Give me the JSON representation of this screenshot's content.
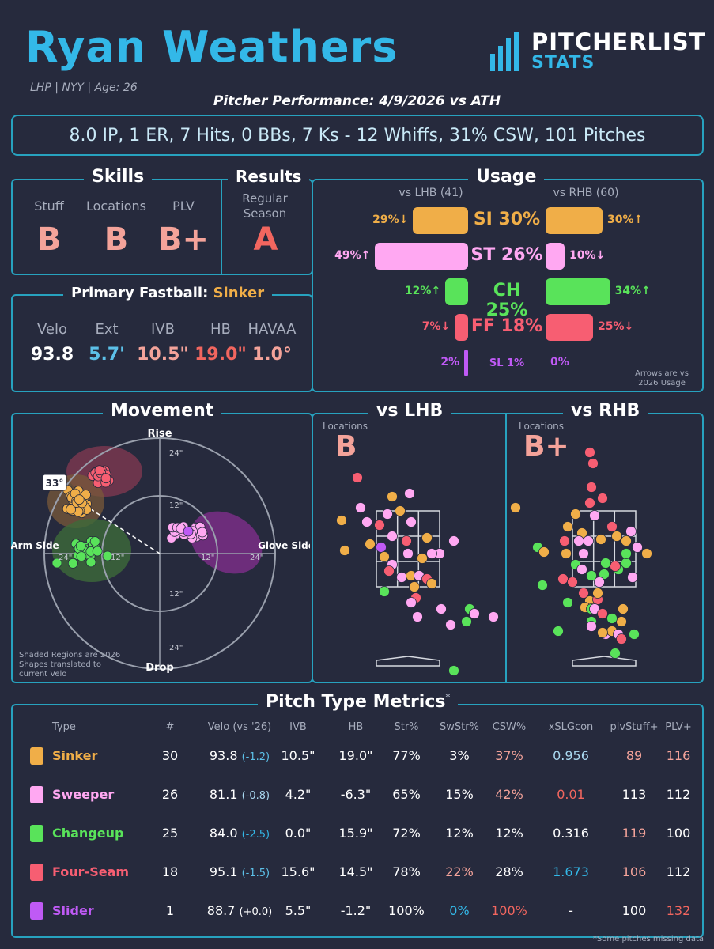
{
  "header": {
    "pitcher_name": "Ryan Weathers",
    "subtitle": "LHP | NYY | Age: 26",
    "performance_title": "Pitcher Performance: 4/9/2026 vs ATH",
    "stat_line": "8.0 IP, 1 ER, 7 Hits, 0 BBs, 7 Ks - 12 Whiffs, 31% CSW, 101 Pitches",
    "logo_main": "PITCHERLIST",
    "logo_sub": "STATS"
  },
  "skills": {
    "title": "Skills",
    "labels": [
      "Stuff",
      "Locations",
      "PLV"
    ],
    "grades": [
      "B",
      "B",
      "B+"
    ]
  },
  "results": {
    "title": "Results",
    "label": "Regular Season",
    "grade": "A"
  },
  "primary_fastball": {
    "title_prefix": "Primary Fastball:",
    "pitch": "Sinker",
    "labels": [
      "Velo",
      "Ext",
      "IVB",
      "HB",
      "HAVAA"
    ],
    "values": [
      "93.8",
      "5.7'",
      "10.5\"",
      "19.0\"",
      "1.0°"
    ],
    "value_colors": [
      "#ffffff",
      "#5cc0e8",
      "#f4a39a",
      "#f2665f",
      "#f4a39a"
    ]
  },
  "usage": {
    "title": "Usage",
    "lhb_label": "vs LHB (41)",
    "rhb_label": "vs RHB (60)",
    "note": "Arrows are vs 2026 Usage",
    "rows": [
      {
        "label": "SI 30%",
        "color": "#f0ae48",
        "lhb": 29,
        "lhb_text": "29%↓",
        "rhb": 30,
        "rhb_text": "30%↑"
      },
      {
        "label": "ST 26%",
        "color": "#ffa8f2",
        "lhb": 49,
        "lhb_text": "49%↑",
        "rhb": 10,
        "rhb_text": "10%↓"
      },
      {
        "label": "CH 25%",
        "color": "#59e35a",
        "lhb": 12,
        "lhb_text": "12%↑",
        "rhb": 34,
        "rhb_text": "34%↑"
      },
      {
        "label": "FF 18%",
        "color": "#f75e72",
        "lhb": 7,
        "lhb_text": "7%↓",
        "rhb": 25,
        "rhb_text": "25%↓"
      },
      {
        "label": "SL 1%",
        "color": "#bf5af5",
        "lhb": 2,
        "lhb_text": "2%",
        "rhb": 0,
        "rhb_text": "0%"
      }
    ]
  },
  "movement": {
    "title": "Movement",
    "top_label": "Rise",
    "bottom_label": "Drop",
    "left_label": "Arm Side",
    "right_label": "Glove Side",
    "ring_labels": [
      "24\"",
      "12\"",
      "12\"",
      "24\"",
      "24\"",
      "12\"",
      "12\"",
      "24\""
    ],
    "arm_angle": "33°",
    "note": "Shaded Regions are 2026 Shapes translated to current Velo"
  },
  "vs_lhb": {
    "title": "vs LHB",
    "loc_label": "Locations",
    "grade": "B"
  },
  "vs_rhb": {
    "title": "vs RHB",
    "loc_label": "Locations",
    "grade": "B+"
  },
  "metrics": {
    "title": "Pitch Type Metrics",
    "asterisk": "*",
    "footnote": "*Some pitches missing data",
    "headers": [
      "Type",
      "#",
      "Velo (vs '26)",
      "IVB",
      "HB",
      "Str%",
      "SwStr%",
      "CSW%",
      "xSLGcon",
      "plvStuff+",
      "PLV+"
    ],
    "rows": [
      {
        "type": "Sinker",
        "color": "#f0ae48",
        "n": "30",
        "velo": "93.8",
        "velo_diff": "(-1.2)",
        "ivb": "10.5\"",
        "hb": "19.0\"",
        "str": "77%",
        "swstr": "3%",
        "csw": "37%",
        "xslg": "0.956",
        "stuff": "89",
        "plv": "116",
        "colors": {
          "swstr": "#ffffff",
          "csw": "#f4a39a",
          "xslg": "#a9d8f0",
          "stuff": "#f4a39a",
          "plv": "#f4a39a",
          "velo_diff": "#5cc0e8"
        }
      },
      {
        "type": "Sweeper",
        "color": "#ffa8f2",
        "n": "26",
        "velo": "81.1",
        "velo_diff": "(-0.8)",
        "ivb": "4.2\"",
        "hb": "-6.3\"",
        "str": "65%",
        "swstr": "15%",
        "csw": "42%",
        "xslg": "0.01",
        "stuff": "113",
        "plv": "112",
        "colors": {
          "swstr": "#ffffff",
          "csw": "#f4a39a",
          "xslg": "#f2665f",
          "stuff": "#ffffff",
          "plv": "#ffffff",
          "velo_diff": "#a9d8f0"
        }
      },
      {
        "type": "Changeup",
        "color": "#59e35a",
        "n": "25",
        "velo": "84.0",
        "velo_diff": "(-2.5)",
        "ivb": "0.0\"",
        "hb": "15.9\"",
        "str": "72%",
        "swstr": "12%",
        "csw": "12%",
        "xslg": "0.316",
        "stuff": "119",
        "plv": "100",
        "colors": {
          "swstr": "#ffffff",
          "csw": "#ffffff",
          "xslg": "#ffffff",
          "stuff": "#f4a39a",
          "plv": "#ffffff",
          "velo_diff": "#33b8e8"
        }
      },
      {
        "type": "Four-Seam",
        "color": "#f75e72",
        "n": "18",
        "velo": "95.1",
        "velo_diff": "(-1.5)",
        "ivb": "15.6\"",
        "hb": "14.5\"",
        "str": "78%",
        "swstr": "22%",
        "csw": "28%",
        "xslg": "1.673",
        "stuff": "106",
        "plv": "112",
        "colors": {
          "swstr": "#f4a39a",
          "csw": "#ffffff",
          "xslg": "#33b8e8",
          "stuff": "#f4a39a",
          "plv": "#ffffff",
          "velo_diff": "#5cc0e8"
        }
      },
      {
        "type": "Slider",
        "color": "#bf5af5",
        "n": "1",
        "velo": "88.7",
        "velo_diff": "(+0.0)",
        "ivb": "5.5\"",
        "hb": "-1.2\"",
        "str": "100%",
        "swstr": "0%",
        "csw": "100%",
        "xslg": "-",
        "stuff": "100",
        "plv": "132",
        "colors": {
          "swstr": "#33b8e8",
          "csw": "#f2665f",
          "xslg": "#ffffff",
          "stuff": "#ffffff",
          "plv": "#f2665f",
          "velo_diff": "#ffffff"
        }
      }
    ]
  }
}
